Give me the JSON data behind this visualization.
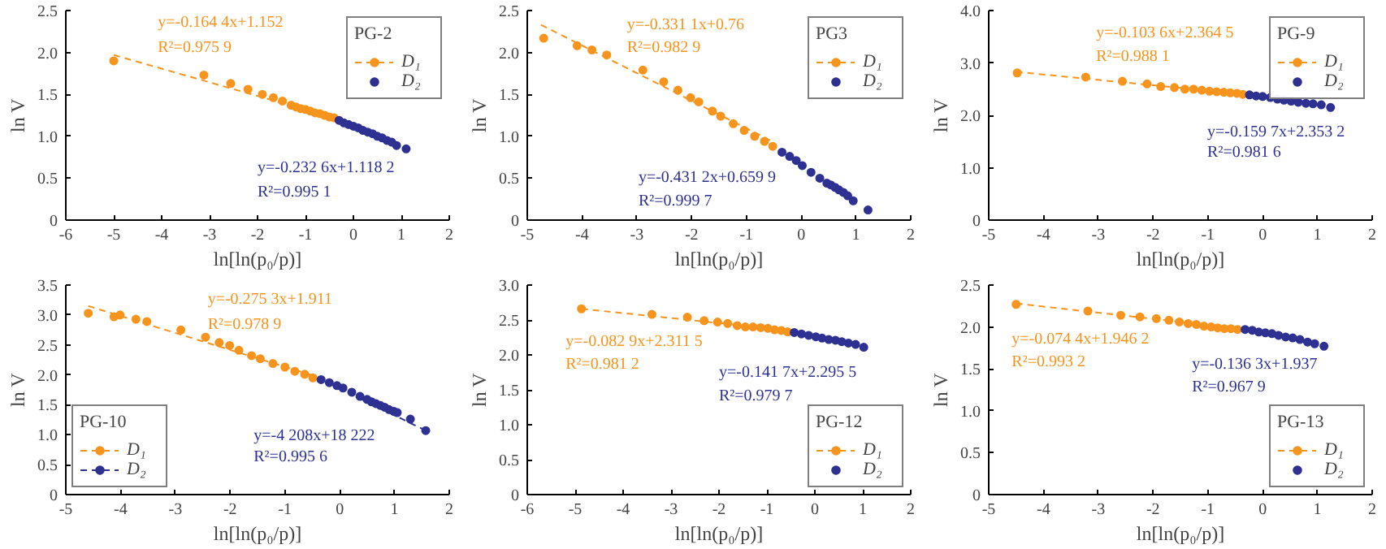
{
  "chart_data": [
    {
      "type": "scatter",
      "legend_title": "PG-2",
      "legend": "top right",
      "xlabel": "ln[ln(p₀/p)]",
      "ylabel": "ln V",
      "xlim": [
        -6,
        2
      ],
      "ylim": [
        0,
        2.5
      ],
      "xticks": [
        -6,
        -5,
        -4,
        -3,
        -2,
        -1,
        0,
        1,
        2
      ],
      "yticks": [
        0,
        0.5,
        {
          "value": 1,
          "label": "1.0"
        },
        1.5,
        {
          "value": 2,
          "label": "2.0"
        },
        2.5
      ],
      "series": [
        {
          "name": "D₁",
          "marker": "circle",
          "color": "#f7941d",
          "x": [
            -5.0,
            -3.12,
            -2.56,
            -2.2,
            -1.9,
            -1.67,
            -1.48,
            -1.3,
            -1.2,
            -1.1,
            -1.0,
            -0.9,
            -0.8,
            -0.7,
            -0.6,
            -0.5,
            -0.4
          ],
          "values": [
            1.9,
            1.73,
            1.63,
            1.56,
            1.5,
            1.46,
            1.42,
            1.37,
            1.35,
            1.33,
            1.32,
            1.3,
            1.28,
            1.27,
            1.25,
            1.23,
            1.22
          ]
        },
        {
          "type": "line",
          "line_style": "dashed",
          "color": "#f7941d",
          "x": [
            -5.0,
            -0.4
          ],
          "values": [
            1.97,
            1.22
          ]
        },
        {
          "name": "D₂",
          "marker": "circle",
          "color": "#2e3192",
          "x": [
            -0.3,
            -0.2,
            -0.1,
            0,
            0.1,
            0.2,
            0.3,
            0.4,
            0.5,
            0.6,
            0.7,
            0.8,
            0.9,
            1.1
          ],
          "values": [
            1.19,
            1.16,
            1.14,
            1.12,
            1.1,
            1.07,
            1.05,
            1.03,
            1.0,
            0.98,
            0.95,
            0.93,
            0.89,
            0.85
          ]
        }
      ],
      "annotations": [
        "y=-0.164 4x+1.152",
        "R²=0.975 9",
        "y=-0.232 6x+1.118 2",
        "R²=0.995 1"
      ]
    },
    {
      "type": "scatter",
      "legend_title": "PG3",
      "legend": "top right",
      "xlabel": "ln[ln(p₀/p)]",
      "ylabel": "ln V",
      "xlim": [
        -5,
        2
      ],
      "ylim": [
        0,
        2.5
      ],
      "xticks": [
        -5,
        -4,
        -3,
        -2,
        -1,
        0,
        1,
        2
      ],
      "yticks": [
        0,
        0.5,
        {
          "value": 1,
          "label": "1.0"
        },
        1.5,
        {
          "value": 2,
          "label": "2.0"
        },
        2.5
      ],
      "series": [
        {
          "name": "D₁",
          "marker": "circle",
          "color": "#f7941d",
          "x": [
            -4.7,
            -4.09,
            -3.82,
            -3.55,
            -2.89,
            -2.51,
            -2.25,
            -2.02,
            -1.87,
            -1.62,
            -1.47,
            -1.24,
            -1.04,
            -0.85,
            -0.67,
            -0.52
          ],
          "values": [
            2.17,
            2.08,
            2.03,
            1.97,
            1.79,
            1.65,
            1.55,
            1.46,
            1.41,
            1.3,
            1.24,
            1.15,
            1.07,
            1.0,
            0.94,
            0.88
          ]
        },
        {
          "type": "line",
          "line_style": "dashed",
          "color": "#f7941d",
          "x": [
            -4.75,
            -0.5
          ],
          "values": [
            2.33,
            0.93
          ]
        },
        {
          "name": "D₂",
          "marker": "circle",
          "color": "#2e3192",
          "x": [
            -0.35,
            -0.21,
            -0.09,
            0.02,
            0.18,
            0.34,
            0.47,
            0.54,
            0.62,
            0.69,
            0.77,
            0.85,
            0.95,
            1.22
          ],
          "values": [
            0.81,
            0.76,
            0.71,
            0.65,
            0.57,
            0.5,
            0.44,
            0.42,
            0.39,
            0.36,
            0.33,
            0.29,
            0.23,
            0.12
          ]
        }
      ],
      "annotations": [
        "y=-0.331 1x+0.76",
        "R²=0.982 9",
        "y=-0.431 2x+0.659 9",
        "R²=0.999 7"
      ]
    },
    {
      "type": "scatter",
      "legend_title": "PG-9",
      "legend": "top right",
      "xlabel": "ln[ln(p₀/p)]",
      "ylabel": "ln V",
      "xlim": [
        -5,
        2
      ],
      "ylim": [
        0,
        4
      ],
      "xticks": [
        -5,
        -4,
        -3,
        -2,
        -1,
        0,
        1,
        2
      ],
      "yticks": [
        0,
        {
          "value": 1,
          "label": "1.0"
        },
        {
          "value": 2,
          "label": "2.0"
        },
        {
          "value": 3,
          "label": "3.0"
        },
        {
          "value": 4,
          "label": "4.0"
        }
      ],
      "series": [
        {
          "name": "D₁",
          "marker": "circle",
          "color": "#f7941d",
          "x": [
            -4.48,
            -3.23,
            -2.56,
            -2.11,
            -1.86,
            -1.61,
            -1.42,
            -1.26,
            -1.11,
            -0.97,
            -0.84,
            -0.71,
            -0.59,
            -0.47,
            -0.36
          ],
          "values": [
            2.81,
            2.73,
            2.65,
            2.6,
            2.55,
            2.53,
            2.5,
            2.5,
            2.48,
            2.46,
            2.45,
            2.44,
            2.43,
            2.42,
            2.4
          ]
        },
        {
          "type": "line",
          "line_style": "dashed",
          "color": "#f7941d",
          "x": [
            -4.5,
            -0.3
          ],
          "values": [
            2.83,
            2.4
          ]
        },
        {
          "name": "D₂",
          "marker": "circle",
          "color": "#2e3192",
          "x": [
            -0.24,
            -0.12,
            0,
            0.14,
            0.27,
            0.39,
            0.52,
            0.65,
            0.79,
            0.92,
            1.07,
            1.24
          ],
          "values": [
            2.39,
            2.37,
            2.36,
            2.34,
            2.31,
            2.29,
            2.27,
            2.25,
            2.23,
            2.22,
            2.2,
            2.15
          ]
        }
      ],
      "annotations": [
        "y=-0.103 6x+2.364 5",
        "R²=0.988 1",
        "y=-0.159 7x+2.353 2",
        "R²=0.981 6"
      ]
    },
    {
      "type": "scatter",
      "legend_title": "PG-10",
      "legend": "bottom left",
      "xlabel": "ln[ln(p₀/p)]",
      "ylabel": "ln V",
      "xlim": [
        -5,
        2
      ],
      "ylim": [
        0,
        3.5
      ],
      "xticks": [
        -5,
        -4,
        -3,
        -2,
        -1,
        0,
        1,
        2
      ],
      "yticks": [
        0,
        0.5,
        {
          "value": 1,
          "label": "1.0"
        },
        1.5,
        {
          "value": 2,
          "label": "2.0"
        },
        2.5,
        {
          "value": 3,
          "label": "3.0"
        },
        3.5
      ],
      "series": [
        {
          "name": "D₁",
          "marker": "circle",
          "color": "#f7941d",
          "x": [
            -4.59,
            -4.12,
            -4.01,
            -3.72,
            -3.52,
            -2.9,
            -2.45,
            -2.2,
            -2.01,
            -1.84,
            -1.61,
            -1.45,
            -1.22,
            -1.0,
            -0.82,
            -0.64,
            -0.49
          ],
          "values": [
            3.03,
            2.97,
            3.0,
            2.93,
            2.89,
            2.75,
            2.63,
            2.54,
            2.49,
            2.41,
            2.32,
            2.27,
            2.19,
            2.13,
            2.06,
            2.01,
            1.95
          ]
        },
        {
          "type": "line",
          "line_style": "dashed",
          "color": "#f7941d",
          "x": [
            -4.59,
            -0.42
          ],
          "values": [
            3.15,
            1.97
          ]
        },
        {
          "name": "D₂",
          "marker": "circle",
          "color": "#2e3192",
          "x": [
            -0.34,
            -0.19,
            -0.05,
            0.06,
            0.22,
            0.37,
            0.5,
            0.58,
            0.66,
            0.74,
            0.82,
            0.9,
            0.99,
            1.05,
            1.29,
            1.57
          ],
          "values": [
            1.92,
            1.87,
            1.82,
            1.78,
            1.71,
            1.64,
            1.59,
            1.55,
            1.52,
            1.49,
            1.46,
            1.42,
            1.39,
            1.37,
            1.26,
            1.07
          ]
        },
        {
          "type": "line",
          "line_style": "dashed",
          "color": "#2e3192",
          "x": [
            -0.4,
            1.57
          ],
          "values": [
            1.95,
            1.07
          ]
        }
      ],
      "annotations": [
        "y=-0.275 3x+1.911",
        "R²=0.978 9",
        "y=-4 208x+18 222",
        "R²=0.995 6"
      ]
    },
    {
      "type": "scatter",
      "legend_title": "PG-12",
      "legend": "bottom right",
      "xlabel": "ln[ln(p₀/p)]",
      "ylabel": "ln V",
      "xlim": [
        -6,
        2
      ],
      "ylim": [
        0,
        3
      ],
      "xticks": [
        -6,
        -5,
        -4,
        -3,
        -2,
        -1,
        0,
        1,
        2
      ],
      "yticks": [
        0,
        0.5,
        {
          "value": 1,
          "label": "1.0"
        },
        1.5,
        {
          "value": 2,
          "label": "2.0"
        },
        2.5,
        {
          "value": 3,
          "label": "3.0"
        }
      ],
      "series": [
        {
          "name": "D₁",
          "marker": "circle",
          "color": "#f7941d",
          "x": [
            -4.87,
            -3.4,
            -2.66,
            -2.31,
            -2.03,
            -1.82,
            -1.62,
            -1.45,
            -1.29,
            -1.13,
            -0.98,
            -0.84,
            -0.7,
            -0.57
          ],
          "values": [
            2.66,
            2.58,
            2.54,
            2.49,
            2.47,
            2.45,
            2.42,
            2.4,
            2.4,
            2.39,
            2.38,
            2.36,
            2.35,
            2.33
          ]
        },
        {
          "type": "line",
          "line_style": "dashed",
          "color": "#f7941d",
          "x": [
            -4.87,
            -0.5
          ],
          "values": [
            2.66,
            2.35
          ]
        },
        {
          "name": "D₂",
          "marker": "circle",
          "color": "#2e3192",
          "x": [
            -0.43,
            -0.28,
            -0.13,
            0.02,
            0.15,
            0.29,
            0.43,
            0.56,
            0.7,
            0.85,
            1.02
          ],
          "values": [
            2.32,
            2.3,
            2.28,
            2.26,
            2.24,
            2.22,
            2.21,
            2.19,
            2.17,
            2.15,
            2.11
          ]
        }
      ],
      "annotations": [
        "y=-0.082 9x+2.311 5",
        "R²=0.981 2",
        "y=-0.141 7x+2.295 5",
        "R²=0.979 7"
      ]
    },
    {
      "type": "scatter",
      "legend_title": "PG-13",
      "legend": "bottom right",
      "xlabel": "ln[ln(p₀/p)]",
      "ylabel": "ln V",
      "xlim": [
        -5,
        2
      ],
      "ylim": [
        0,
        2.5
      ],
      "xticks": [
        -5,
        -4,
        -3,
        -2,
        -1,
        0,
        1,
        2
      ],
      "yticks": [
        0,
        0.5,
        {
          "value": 1,
          "label": "1.0"
        },
        1.5,
        {
          "value": 2,
          "label": "2.0"
        },
        2.5
      ],
      "series": [
        {
          "name": "D₁",
          "marker": "circle",
          "color": "#f7941d",
          "x": [
            -4.5,
            -3.19,
            -2.59,
            -2.24,
            -1.94,
            -1.71,
            -1.52,
            -1.36,
            -1.21,
            -1.07,
            -0.94,
            -0.82,
            -0.7,
            -0.58,
            -0.46
          ],
          "values": [
            2.27,
            2.19,
            2.14,
            2.12,
            2.1,
            2.08,
            2.06,
            2.04,
            2.03,
            2.01,
            2.0,
            1.99,
            1.98,
            1.98,
            1.97
          ]
        },
        {
          "type": "line",
          "line_style": "dashed",
          "color": "#f7941d",
          "x": [
            -4.5,
            -0.4
          ],
          "values": [
            2.28,
            1.98
          ]
        },
        {
          "name": "D₂",
          "marker": "circle",
          "color": "#2e3192",
          "x": [
            -0.32,
            -0.19,
            -0.07,
            0.05,
            0.17,
            0.29,
            0.42,
            0.55,
            0.68,
            0.82,
            0.95,
            1.12
          ],
          "values": [
            1.97,
            1.96,
            1.94,
            1.93,
            1.92,
            1.9,
            1.88,
            1.87,
            1.85,
            1.82,
            1.8,
            1.77
          ]
        }
      ],
      "annotations": [
        "y=-0.074 4x+1.946 2",
        "R²=0.993 2",
        "y=-0.136 3x+1.937",
        "R²=0.967 9"
      ]
    }
  ]
}
